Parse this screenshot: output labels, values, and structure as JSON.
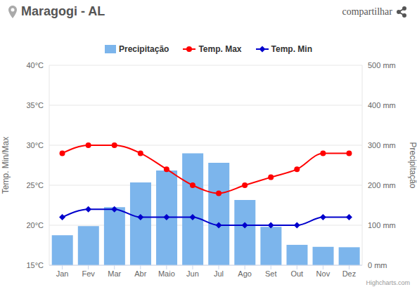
{
  "chart_data": {
    "type": "bar",
    "title": "Maragogi - AL",
    "annotations": [
      "compartilhar",
      "Highcharts.com"
    ],
    "y_label": "Temp. Min/Max",
    "y2_label": "Precipitação",
    "categories": [
      "Jan",
      "Fev",
      "Mar",
      "Abr",
      "Maio",
      "Jun",
      "Jul",
      "Ago",
      "Set",
      "Out",
      "Nov",
      "Dez"
    ],
    "series": [
      {
        "name": "Precipitação",
        "type": "bar",
        "axis": "y2",
        "color": "#7cb5ec",
        "values": [
          75,
          98,
          145,
          207,
          237,
          280,
          256,
          163,
          96,
          51,
          46,
          45
        ]
      },
      {
        "name": "Temp. Max",
        "type": "line",
        "color": "#ff0000",
        "marker": "circle",
        "line_style": "smooth",
        "values": [
          29,
          30,
          30,
          29,
          27,
          25,
          24,
          25,
          26,
          27,
          29,
          29
        ]
      },
      {
        "name": "Temp. Min",
        "type": "line",
        "color": "#0000cc",
        "marker": "diamond",
        "line_style": "smooth",
        "values": [
          21,
          22,
          22,
          21,
          21,
          21,
          20,
          20,
          20,
          20,
          21,
          21
        ]
      }
    ],
    "ylim": [
      15,
      40
    ],
    "yticks": [
      {
        "value": 15,
        "label": "15°C"
      },
      {
        "value": 20,
        "label": "20°C"
      },
      {
        "value": 25,
        "label": "25°C"
      },
      {
        "value": 30,
        "label": "30°C"
      },
      {
        "value": 35,
        "label": "35°C"
      },
      {
        "value": 40,
        "label": "40°C"
      }
    ],
    "y2lim": [
      0,
      500
    ],
    "y2ticks": [
      {
        "value": 0,
        "label": "0 mm"
      },
      {
        "value": 100,
        "label": "100 mm"
      },
      {
        "value": 200,
        "label": "200 mm"
      },
      {
        "value": 300,
        "label": "300 mm"
      },
      {
        "value": 400,
        "label": "400 mm"
      },
      {
        "value": 500,
        "label": "500 mm"
      }
    ],
    "grid": true,
    "legend": "top"
  }
}
